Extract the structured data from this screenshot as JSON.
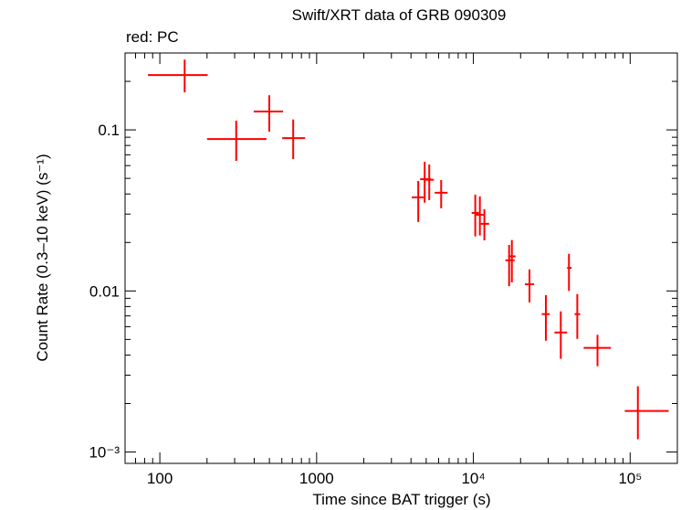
{
  "chart_data": {
    "type": "errorbar",
    "title": "Swift/XRT data of GRB 090309",
    "annotation": "red: PC",
    "xlabel": "Time since BAT trigger (s)",
    "ylabel": "Count Rate (0.3–10 keV) (s⁻¹)",
    "xscale": "log",
    "yscale": "log",
    "xlim": [
      60,
      200000
    ],
    "ylim": [
      0.00085,
      0.3
    ],
    "xticks": [
      100,
      1000,
      {
        "value": 10000,
        "label": "10⁴"
      },
      {
        "value": 100000,
        "label": "10⁵"
      }
    ],
    "yticks": [
      0.1,
      0.01,
      {
        "value": 0.001,
        "label": "10⁻³"
      }
    ],
    "xminorticks": [
      60,
      70,
      80,
      90,
      200,
      300,
      400,
      500,
      600,
      700,
      800,
      900,
      2000,
      3000,
      4000,
      5000,
      6000,
      7000,
      8000,
      9000,
      20000,
      30000,
      40000,
      50000,
      60000,
      70000,
      80000,
      90000,
      200000
    ],
    "yminorticks": [
      0.002,
      0.003,
      0.004,
      0.005,
      0.006,
      0.007,
      0.008,
      0.009,
      0.02,
      0.03,
      0.04,
      0.05,
      0.06,
      0.07,
      0.08,
      0.09,
      0.2,
      0.3
    ],
    "series": [
      {
        "color": "#ff0000",
        "x": [
          144,
          307,
          499,
          709,
          4450,
          4890,
          5230,
          6230,
          10280,
          11000,
          11750,
          16900,
          17600,
          22800,
          29000,
          36100,
          40700,
          46000,
          61900,
          112000
        ],
        "xlo": [
          84,
          200,
          397,
          603,
          4040,
          4570,
          4890,
          5670,
          9750,
          10200,
          11150,
          16000,
          16700,
          21300,
          27300,
          32900,
          39600,
          44200,
          50500,
          92400
        ],
        "xhi": [
          202,
          479,
          611,
          845,
          4820,
          5370,
          5600,
          6850,
          10840,
          11600,
          12600,
          18300,
          18600,
          24400,
          30700,
          39600,
          42300,
          48000,
          75400,
          176000
        ],
        "values": [
          0.219,
          0.0877,
          0.13,
          0.0889,
          0.0381,
          0.0494,
          0.049,
          0.0407,
          0.0305,
          0.0297,
          0.0261,
          0.0155,
          0.0164,
          0.011,
          0.00718,
          0.00552,
          0.0139,
          0.00718,
          0.00443,
          0.0018
        ],
        "ylo": [
          0.171,
          0.0642,
          0.0974,
          0.0659,
          0.0268,
          0.0353,
          0.0366,
          0.0326,
          0.0218,
          0.0221,
          0.0206,
          0.0107,
          0.0113,
          0.00849,
          0.00491,
          0.00379,
          0.01,
          0.00504,
          0.00341,
          0.0012
        ],
        "yhi": [
          0.273,
          0.114,
          0.164,
          0.116,
          0.0482,
          0.0634,
          0.061,
          0.0488,
          0.0396,
          0.0386,
          0.0322,
          0.0193,
          0.0207,
          0.0136,
          0.00942,
          0.00747,
          0.017,
          0.00956,
          0.00534,
          0.00256
        ]
      }
    ]
  }
}
